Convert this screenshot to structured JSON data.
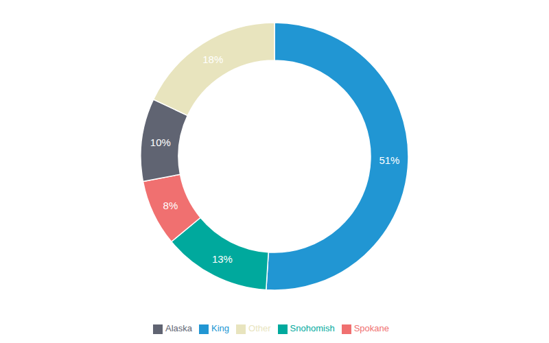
{
  "chart_data": {
    "type": "donut",
    "categories": [
      "King",
      "Snohomish",
      "Spokane",
      "Alaska",
      "Other"
    ],
    "values": [
      51,
      13,
      8,
      10,
      18
    ],
    "value_labels": [
      "51%",
      "13%",
      "8%",
      "10%",
      "18%"
    ],
    "data_labels": true,
    "colors": [
      "#2196D3",
      "#00A99D",
      "#F07070",
      "#606472",
      "#E8E4BE"
    ],
    "legend": "bottom"
  }
}
